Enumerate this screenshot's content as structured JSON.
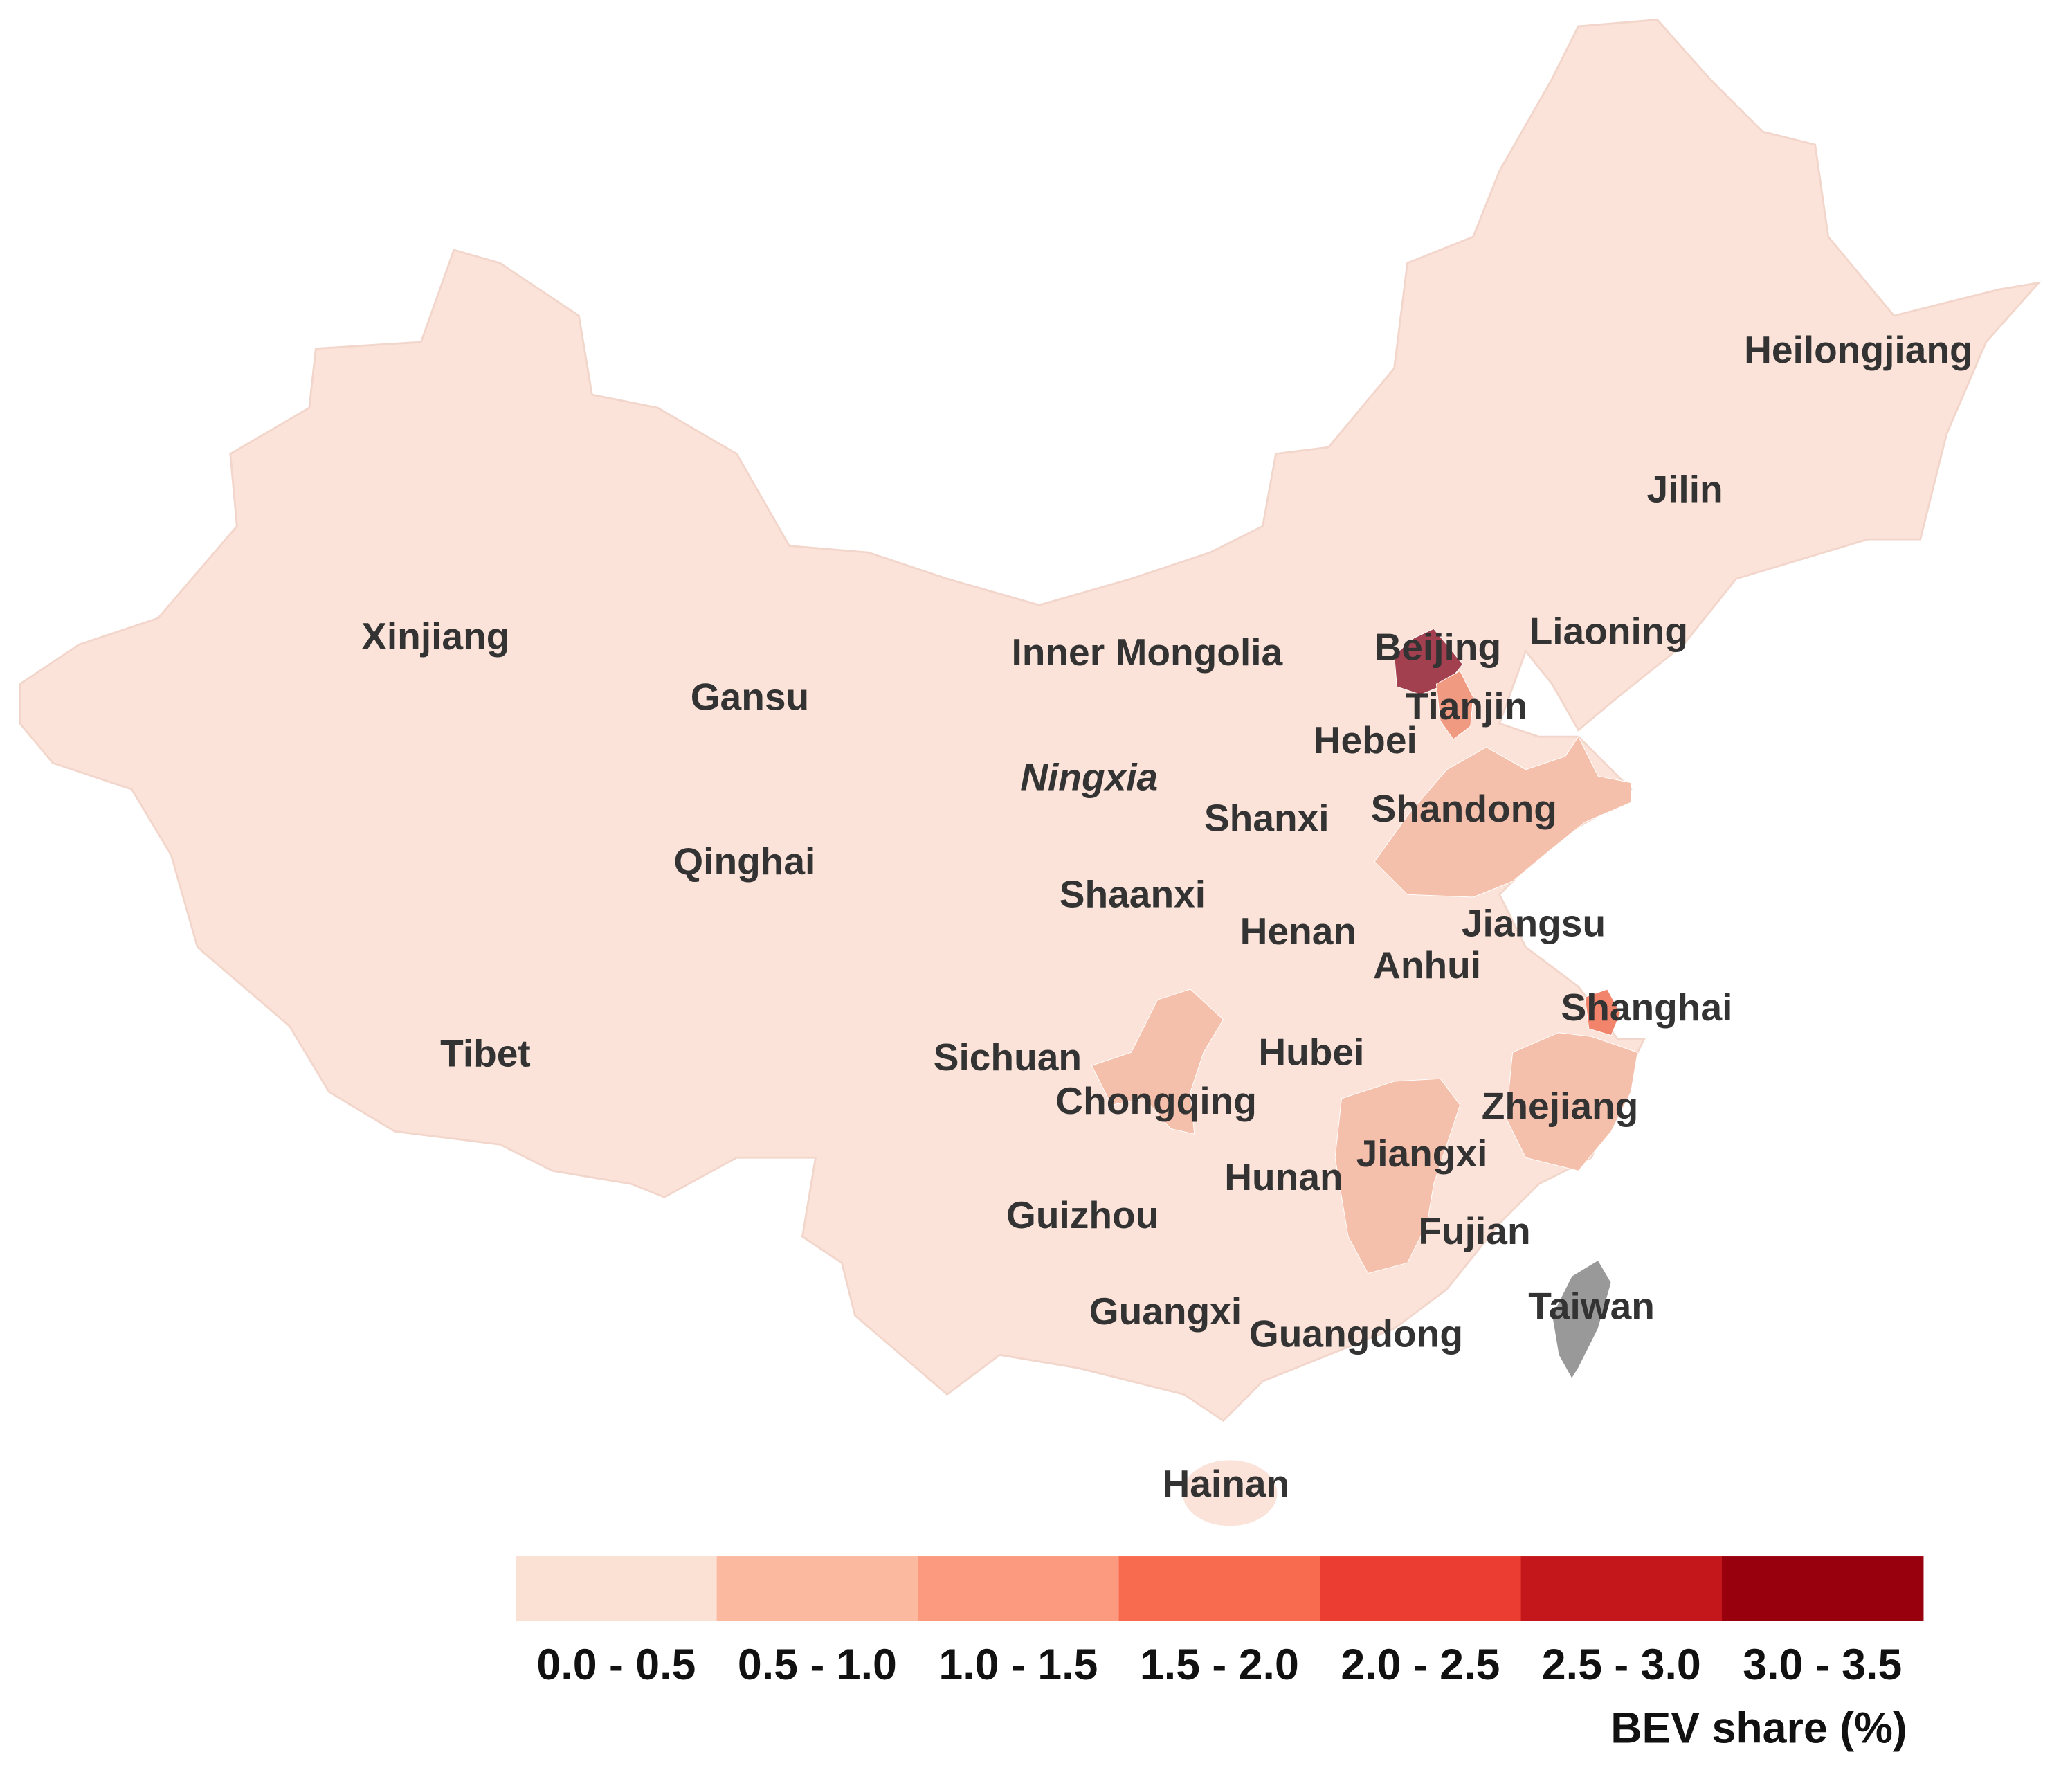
{
  "map": {
    "base_color": "#fbe3d9",
    "provinces": [
      {
        "name": "Heilongjiang"
      },
      {
        "name": "Jilin"
      },
      {
        "name": "Liaoning"
      },
      {
        "name": "Xinjiang"
      },
      {
        "name": "Gansu"
      },
      {
        "name": "Inner Mongolia"
      },
      {
        "name": "Beijing",
        "color": "#a2404f"
      },
      {
        "name": "Tianjin",
        "color": "#f09a82"
      },
      {
        "name": "Hebei"
      },
      {
        "name": "Ningxia"
      },
      {
        "name": "Shanxi"
      },
      {
        "name": "Shandong",
        "color": "#f5c0ab"
      },
      {
        "name": "Qinghai"
      },
      {
        "name": "Shaanxi"
      },
      {
        "name": "Henan"
      },
      {
        "name": "Jiangsu"
      },
      {
        "name": "Anhui"
      },
      {
        "name": "Shanghai",
        "color": "#f2846c"
      },
      {
        "name": "Tibet"
      },
      {
        "name": "Sichuan"
      },
      {
        "name": "Hubei"
      },
      {
        "name": "Chongqing",
        "color": "#f5c0ab"
      },
      {
        "name": "Zhejiang",
        "color": "#f5c0ab"
      },
      {
        "name": "Jiangxi",
        "color": "#f5c0ab"
      },
      {
        "name": "Hunan"
      },
      {
        "name": "Guizhou"
      },
      {
        "name": "Fujian"
      },
      {
        "name": "Taiwan",
        "color": "#999999"
      },
      {
        "name": "Guangxi"
      },
      {
        "name": "Guangdong"
      },
      {
        "name": "Hainan"
      }
    ],
    "legend": {
      "title": "BEV share (%)",
      "bins": [
        {
          "label": "0.0 - 0.5",
          "color": "#fbe0d4"
        },
        {
          "label": "0.5 - 1.0",
          "color": "#fbbaa0"
        },
        {
          "label": "1.0 - 1.5",
          "color": "#fb9a7e"
        },
        {
          "label": "1.5 - 2.0",
          "color": "#f96b4f"
        },
        {
          "label": "2.0 - 2.5",
          "color": "#eb3d31"
        },
        {
          "label": "2.5 - 3.0",
          "color": "#c4171c"
        },
        {
          "label": "3.0 - 3.5",
          "color": "#99000d"
        }
      ]
    }
  }
}
